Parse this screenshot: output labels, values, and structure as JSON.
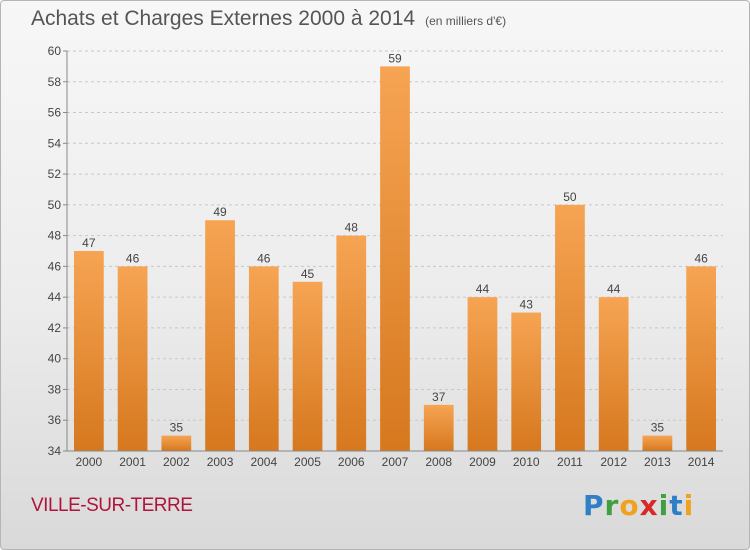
{
  "header": {
    "title": "Achats et Charges Externes 2000 à 2014",
    "subtitle": "(en milliers d'€)"
  },
  "footer": {
    "commune": "VILLE-SUR-TERRE",
    "logo": [
      "P",
      "r",
      "o",
      "x",
      "i",
      "t",
      "i"
    ]
  },
  "colors": {
    "bar_light": "#f6a453",
    "bar_dark": "#d6781e",
    "title": "#555555",
    "commune": "#b0143c"
  },
  "chart_data": {
    "type": "bar",
    "title": "Achats et Charges Externes 2000 à 2014",
    "subtitle": "(en milliers d'€)",
    "categories": [
      "2000",
      "2001",
      "2002",
      "2003",
      "2004",
      "2005",
      "2006",
      "2007",
      "2008",
      "2009",
      "2010",
      "2011",
      "2012",
      "2013",
      "2014"
    ],
    "values": [
      47,
      46,
      35,
      49,
      46,
      45,
      48,
      59,
      37,
      44,
      43,
      50,
      44,
      35,
      46
    ],
    "ylim": [
      34,
      60
    ],
    "yticks": [
      34,
      36,
      38,
      40,
      42,
      44,
      46,
      48,
      50,
      52,
      54,
      56,
      58,
      60
    ],
    "grid": true,
    "data_labels": true
  }
}
